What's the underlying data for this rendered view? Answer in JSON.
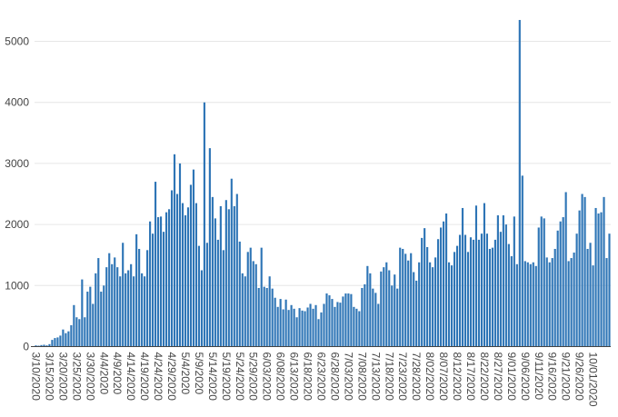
{
  "chart_data": {
    "type": "bar",
    "title": "",
    "xlabel": "",
    "ylabel": "",
    "ylim": [
      0,
      5400
    ],
    "y_ticks": [
      0,
      1000,
      2000,
      3000,
      4000,
      5000
    ],
    "grid": "horizontal",
    "bar_color": "#2e75b6",
    "x_start": "2020-03-10",
    "x_tick_labels": [
      "3/10/2020",
      "3/15/2020",
      "3/20/2020",
      "3/25/2020",
      "3/30/2020",
      "4/4/2020",
      "4/9/2020",
      "4/14/2020",
      "4/19/2020",
      "4/24/2020",
      "4/29/2020",
      "5/4/2020",
      "5/9/2020",
      "5/14/2020",
      "5/19/2020",
      "5/24/2020",
      "5/29/2020",
      "6/03/2020",
      "6/08/2020",
      "6/13/2020",
      "6/18/2020",
      "6/23/2020",
      "6/28/2020",
      "7/03/2020",
      "7/08/2020",
      "7/13/2020",
      "7/18/2020",
      "7/23/2020",
      "7/28/2020",
      "8/02/2020",
      "8/07/2020",
      "8/12/2020",
      "8/17/2020",
      "8/22/2020",
      "8/27/2020",
      "9/01/2020",
      "9/06/2020",
      "9/11/2020",
      "9/16/2020",
      "9/21/2020",
      "9/26/2020",
      "10/01/2020"
    ],
    "values": [
      20,
      15,
      25,
      30,
      20,
      40,
      110,
      140,
      150,
      180,
      280,
      220,
      250,
      350,
      680,
      480,
      450,
      1100,
      480,
      900,
      980,
      700,
      1200,
      1450,
      900,
      1000,
      1300,
      1530,
      1350,
      1460,
      1300,
      1150,
      1700,
      1200,
      1250,
      1350,
      1150,
      1840,
      1600,
      1200,
      1150,
      1580,
      2050,
      1850,
      2700,
      2120,
      2130,
      1880,
      2200,
      2250,
      2560,
      3150,
      2500,
      3000,
      2350,
      2150,
      2280,
      2650,
      2900,
      2350,
      1650,
      1250,
      4000,
      1700,
      3250,
      2450,
      2100,
      1750,
      2300,
      1580,
      2400,
      2250,
      2750,
      2300,
      2500,
      1720,
      1200,
      1150,
      1550,
      1620,
      1400,
      1350,
      960,
      1620,
      980,
      960,
      1150,
      950,
      800,
      650,
      780,
      610,
      770,
      600,
      680,
      620,
      480,
      630,
      590,
      580,
      640,
      700,
      620,
      680,
      450,
      560,
      700,
      870,
      840,
      780,
      650,
      730,
      720,
      820,
      870,
      870,
      860,
      650,
      620,
      580,
      960,
      1020,
      1320,
      1200,
      950,
      880,
      700,
      1230,
      1300,
      1380,
      1250,
      1000,
      1180,
      950,
      1620,
      1600,
      1520,
      1410,
      1530,
      1220,
      1080,
      1380,
      1780,
      1940,
      1630,
      1380,
      1300,
      1460,
      1760,
      1950,
      2050,
      2180,
      1380,
      1330,
      1550,
      1650,
      1830,
      2270,
      1830,
      1550,
      1790,
      1750,
      2310,
      1750,
      1850,
      2350,
      1850,
      1600,
      1620,
      1750,
      2150,
      1880,
      2150,
      2000,
      1680,
      1480,
      2130,
      1350,
      5350,
      2800,
      1400,
      1380,
      1350,
      1380,
      1320,
      1950,
      2130,
      2100,
      1460,
      1380,
      1450,
      1600,
      1900,
      2050,
      2120,
      2530,
      1400,
      1450,
      1540,
      1850,
      2230,
      2500,
      2450,
      1600,
      1700,
      1330,
      2270,
      2180,
      2200,
      2450,
      1450,
      1850
    ]
  }
}
